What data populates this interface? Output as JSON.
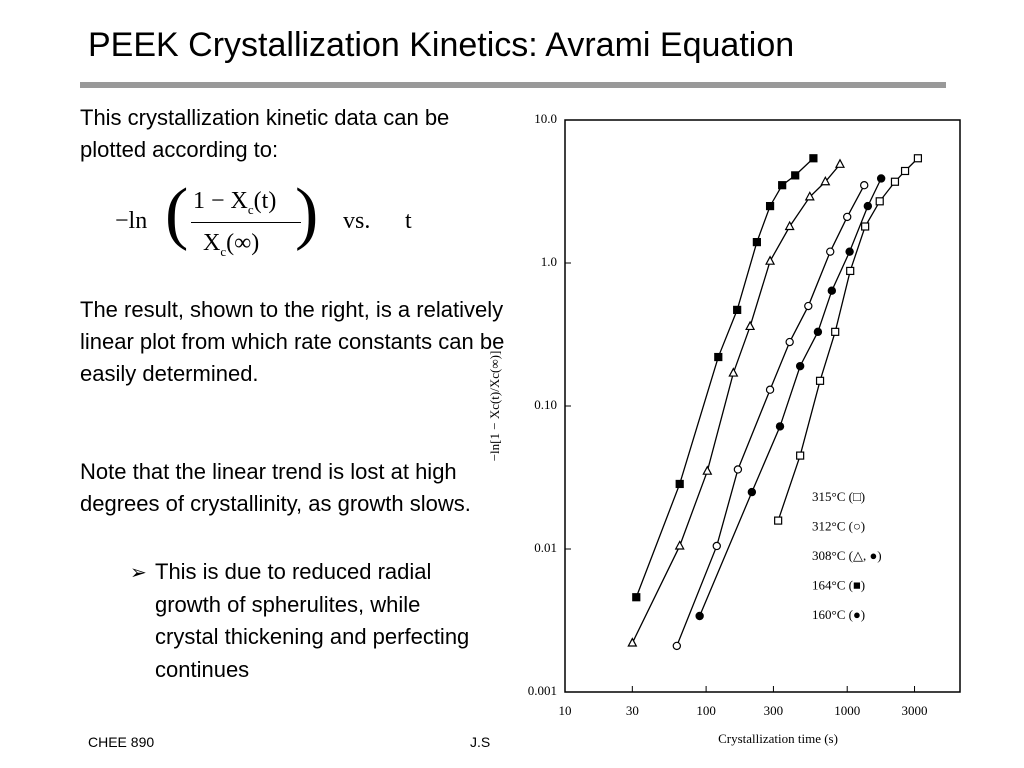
{
  "slide": {
    "title": "PEEK Crystallization Kinetics: Avrami Equation",
    "intro": "This crystallization kinetic data can be plotted according to:",
    "equation": {
      "prefix": "−ln",
      "numerator": "1 − X",
      "sub1": "c",
      "num_arg": "(t)",
      "denominator": "X",
      "sub2": "c",
      "den_arg": "(∞)",
      "vs": "vs.",
      "t": "t"
    },
    "para2": "The result, shown to the right, is a relatively linear plot from which rate constants can be easily determined.",
    "para3": "Note that the linear trend is lost at high degrees of crystallinity, as growth slows.",
    "bullet": "This is due to reduced radial growth of spherulites, while crystal thickening and perfecting continues",
    "footer_left": "CHEE 890",
    "footer_mid": "J.S"
  },
  "chart_data": {
    "type": "scatter",
    "log_x": true,
    "log_y": true,
    "x_label": "Crystallization time (s)",
    "y_label": "−ln[1 − Xc(t)/Xc(∞)]",
    "xlim": [
      10,
      6300
    ],
    "ylim": [
      0.001,
      10
    ],
    "xticks": [
      10,
      30,
      100,
      300,
      1000,
      3000
    ],
    "yticks": [
      {
        "value": 10,
        "label": "10.0"
      },
      {
        "value": 1,
        "label": "1.0"
      },
      {
        "value": 0.1,
        "label": "0.10"
      },
      0.01,
      0.001
    ],
    "series": [
      {
        "name": "315°C (□)",
        "marker": "square",
        "filled": false,
        "color": "#000000",
        "x": [
          324,
          464,
          642,
          822,
          1050,
          1340,
          1700,
          2180,
          2570,
          3170
        ],
        "values": [
          0.0158,
          0.045,
          0.15,
          0.33,
          0.88,
          1.8,
          2.7,
          3.7,
          4.4,
          5.4
        ]
      },
      {
        "name": "312°C (○)",
        "marker": "circle",
        "filled": false,
        "color": "#000000",
        "x": [
          62,
          119,
          168,
          284,
          391,
          530,
          758,
          1000,
          1320
        ],
        "values": [
          0.0021,
          0.0105,
          0.036,
          0.13,
          0.28,
          0.5,
          1.2,
          2.1,
          3.5
        ]
      },
      {
        "name": "308°C (△, ●)",
        "marker": "triangle",
        "filled": false,
        "color": "#000000",
        "x": [
          30,
          65,
          102,
          156,
          205,
          284,
          391,
          543,
          700,
          889
        ],
        "values": [
          0.0022,
          0.0105,
          0.035,
          0.17,
          0.36,
          1.03,
          1.8,
          2.9,
          3.7,
          4.9
        ]
      },
      {
        "name": "164°C (■)",
        "marker": "square",
        "filled": true,
        "color": "#000000",
        "x": [
          32,
          65,
          122,
          166,
          229,
          284,
          346,
          428,
          576
        ],
        "values": [
          0.0046,
          0.0285,
          0.22,
          0.47,
          1.4,
          2.5,
          3.5,
          4.1,
          5.4
        ]
      },
      {
        "name": "160°C (●)",
        "marker": "circle",
        "filled": true,
        "color": "#000000",
        "x": [
          90,
          211,
          334,
          464,
          620,
          778,
          1040,
          1400,
          1740
        ],
        "values": [
          0.0034,
          0.025,
          0.072,
          0.19,
          0.33,
          0.64,
          1.2,
          2.5,
          3.9
        ]
      }
    ]
  }
}
